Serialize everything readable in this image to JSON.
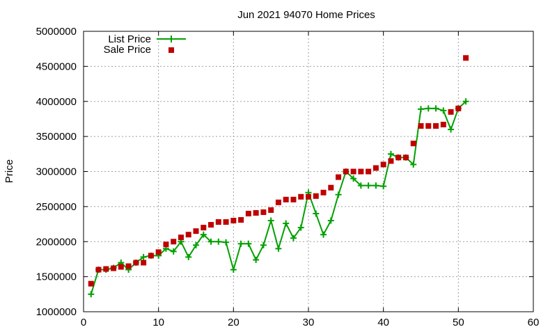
{
  "chart_data": {
    "type": "line",
    "title": "Jun 2021 94070 Home Prices",
    "xlabel": "",
    "ylabel": "Price",
    "xlim": [
      0,
      60
    ],
    "ylim": [
      1000000,
      5000000
    ],
    "x_ticks": [
      0,
      10,
      20,
      30,
      40,
      50,
      60
    ],
    "y_ticks": [
      1000000,
      1500000,
      2000000,
      2500000,
      3000000,
      3500000,
      4000000,
      4500000,
      5000000
    ],
    "x_tick_labels": [
      "0",
      "10",
      "20",
      "30",
      "40",
      "50",
      "60"
    ],
    "y_tick_labels": [
      "1000000",
      "1500000",
      "2000000",
      "2500000",
      "3000000",
      "3500000",
      "4000000",
      "4500000",
      "5000000"
    ],
    "grid": true,
    "legend_position": "top-left",
    "series": [
      {
        "name": "List Price",
        "style": "line-with-plus-markers",
        "color": "#00a000",
        "x": [
          1,
          2,
          3,
          4,
          5,
          6,
          7,
          8,
          9,
          10,
          11,
          12,
          13,
          14,
          15,
          16,
          17,
          18,
          19,
          20,
          21,
          22,
          23,
          24,
          25,
          26,
          27,
          28,
          29,
          30,
          31,
          32,
          33,
          34,
          35,
          36,
          37,
          38,
          39,
          40,
          41,
          42,
          43,
          44,
          45,
          46,
          47,
          48,
          49,
          50,
          51
        ],
        "values": [
          1250000,
          1600000,
          1600000,
          1625000,
          1700000,
          1600000,
          1700000,
          1780000,
          1800000,
          1800000,
          1900000,
          1860000,
          2000000,
          1780000,
          1950000,
          2100000,
          2000000,
          2000000,
          1990000,
          1600000,
          1970000,
          1970000,
          1740000,
          1950000,
          2300000,
          1900000,
          2260000,
          2050000,
          2200000,
          2700000,
          2400000,
          2100000,
          2300000,
          2670000,
          3000000,
          2900000,
          2800000,
          2800000,
          2800000,
          2790000,
          3250000,
          3200000,
          3200000,
          3100000,
          3890000,
          3900000,
          3900000,
          3870000,
          3600000,
          3900000,
          4000000
        ]
      },
      {
        "name": "Sale Price",
        "style": "square-markers",
        "color": "#c00000",
        "x": [
          1,
          2,
          3,
          4,
          5,
          6,
          7,
          8,
          9,
          10,
          11,
          12,
          13,
          14,
          15,
          16,
          17,
          18,
          19,
          20,
          21,
          22,
          23,
          24,
          25,
          26,
          27,
          28,
          29,
          30,
          31,
          32,
          33,
          34,
          35,
          36,
          37,
          38,
          39,
          40,
          41,
          42,
          43,
          44,
          45,
          46,
          47,
          48,
          49,
          50,
          51
        ],
        "values": [
          1400000,
          1600000,
          1610000,
          1620000,
          1640000,
          1650000,
          1700000,
          1700000,
          1800000,
          1850000,
          1960000,
          2000000,
          2060000,
          2100000,
          2150000,
          2200000,
          2240000,
          2280000,
          2280000,
          2300000,
          2310000,
          2400000,
          2410000,
          2420000,
          2450000,
          2560000,
          2600000,
          2600000,
          2640000,
          2640000,
          2650000,
          2700000,
          2770000,
          2920000,
          3000000,
          3000000,
          3000000,
          3000000,
          3050000,
          3100000,
          3150000,
          3200000,
          3200000,
          3400000,
          3650000,
          3650000,
          3650000,
          3670000,
          3850000,
          3900000,
          4620000
        ]
      }
    ]
  }
}
